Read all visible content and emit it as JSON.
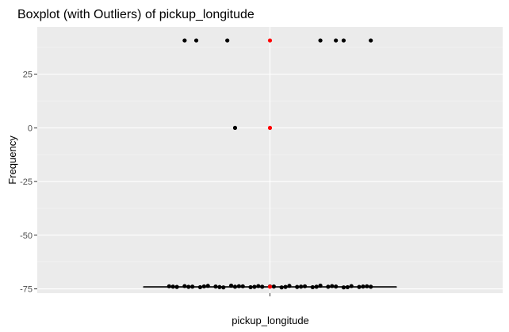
{
  "chart_data": {
    "type": "boxplot",
    "title": "Boxplot (with Outliers) of  pickup_longitude",
    "xlabel": "pickup_longitude",
    "ylabel": "Frequency",
    "categories": [
      ""
    ],
    "ylim": [
      -77,
      47
    ],
    "yticks": [
      {
        "value": 25,
        "label": "25"
      },
      {
        "value": 0,
        "label": "0"
      },
      {
        "value": -25,
        "label": "-25"
      },
      {
        "value": -50,
        "label": "-50"
      },
      {
        "value": -75,
        "label": "-75"
      }
    ],
    "grid": true,
    "box": {
      "min": -73.99,
      "q1": -73.99,
      "median": -73.98,
      "q3": -73.97,
      "max": -73.95,
      "color": "#333333"
    },
    "highlight_color": "#ff0000",
    "point_color": "#000000",
    "jitter_points": [
      {
        "x": -0.22,
        "y": 40.7
      },
      {
        "x": -0.19,
        "y": 40.7
      },
      {
        "x": -0.11,
        "y": 40.7
      },
      {
        "x": 0.13,
        "y": 40.7
      },
      {
        "x": 0.17,
        "y": 40.7
      },
      {
        "x": 0.19,
        "y": 40.7
      },
      {
        "x": 0.26,
        "y": 40.7
      },
      {
        "x": -0.09,
        "y": 0.0
      },
      {
        "x": -0.26,
        "y": -73.8
      },
      {
        "x": -0.24,
        "y": -74.1
      },
      {
        "x": -0.22,
        "y": -73.7
      },
      {
        "x": -0.2,
        "y": -73.95
      },
      {
        "x": -0.18,
        "y": -74.2
      },
      {
        "x": -0.16,
        "y": -73.6
      },
      {
        "x": -0.14,
        "y": -73.9
      },
      {
        "x": -0.12,
        "y": -74.3
      },
      {
        "x": -0.1,
        "y": -73.5
      },
      {
        "x": -0.09,
        "y": -74.0
      },
      {
        "x": -0.07,
        "y": -73.8
      },
      {
        "x": -0.05,
        "y": -74.2
      },
      {
        "x": -0.03,
        "y": -73.7
      },
      {
        "x": -0.02,
        "y": -74.0
      },
      {
        "x": 0.01,
        "y": -73.9
      },
      {
        "x": 0.03,
        "y": -74.3
      },
      {
        "x": 0.05,
        "y": -73.6
      },
      {
        "x": 0.07,
        "y": -74.1
      },
      {
        "x": 0.09,
        "y": -73.8
      },
      {
        "x": 0.11,
        "y": -74.2
      },
      {
        "x": 0.13,
        "y": -73.5
      },
      {
        "x": 0.15,
        "y": -74.0
      },
      {
        "x": 0.17,
        "y": -73.9
      },
      {
        "x": 0.19,
        "y": -74.3
      },
      {
        "x": 0.21,
        "y": -73.7
      },
      {
        "x": 0.23,
        "y": -74.1
      },
      {
        "x": 0.25,
        "y": -73.8
      },
      {
        "x": 0.26,
        "y": -74.0
      },
      {
        "x": -0.25,
        "y": -73.95
      },
      {
        "x": -0.21,
        "y": -74.05
      },
      {
        "x": -0.17,
        "y": -73.85
      },
      {
        "x": -0.13,
        "y": -74.15
      },
      {
        "x": -0.08,
        "y": -73.75
      },
      {
        "x": -0.04,
        "y": -74.05
      },
      {
        "x": 0.0,
        "y": -73.85
      },
      {
        "x": 0.04,
        "y": -74.1
      },
      {
        "x": 0.08,
        "y": -73.95
      },
      {
        "x": 0.12,
        "y": -74.0
      },
      {
        "x": 0.16,
        "y": -73.7
      },
      {
        "x": 0.2,
        "y": -74.2
      },
      {
        "x": 0.24,
        "y": -73.9
      }
    ],
    "red_points": [
      {
        "x": 0.0,
        "y": 40.7
      },
      {
        "x": 0.0,
        "y": 0.0
      },
      {
        "x": 0.0,
        "y": -73.98
      }
    ]
  }
}
